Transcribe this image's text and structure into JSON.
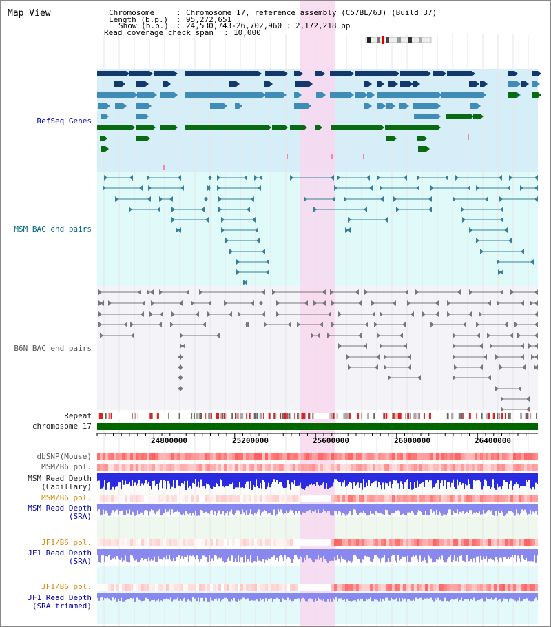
{
  "page_title": "Map View",
  "info": {
    "chromosome_key": "Chromosome",
    "chromosome_val": "Chromosome 17, reference assembly (C57BL/6J) (Build 37)",
    "length_key": "Length (b.p.)",
    "length_val": "95,272,651",
    "show_key": "Show (b.p.)",
    "show_val": "24,530,743-26,702,960 : 2,172,218 bp",
    "coverage_key": "Read coverage check span",
    "coverage_val": "10,000"
  },
  "tracks": {
    "refseq": "RefSeq Genes",
    "msm_bac": "MSM BAC end pairs",
    "b6n_bac": "B6N BAC end pairs",
    "repeat": "Repeat",
    "chromosome": "chromosome 17",
    "dbsnp": "dbSNP(Mouse)",
    "msm_b6_pol_1": "MSM/B6 pol.",
    "msm_depth_cap_1": "MSM Read Depth",
    "msm_depth_cap_2": "(Capillary)",
    "msm_b6_pol_2": "MSM/B6 pol.",
    "msm_depth_sra_1": "MSM Read Depth",
    "msm_depth_sra_2": "(SRA)",
    "jf1_b6_pol_1": "JF1/B6 pol.",
    "jf1_depth_sra_1": "JF1 Read Depth",
    "jf1_depth_sra_2": "(SRA)",
    "jf1_b6_pol_2": "JF1/B6 pol.",
    "jf1_depth_trim_1": "JF1 Read Depth",
    "jf1_depth_trim_2": "(SRA trimmed)"
  },
  "axis": {
    "ticks": [
      {
        "label": "24800000"
      },
      {
        "label": "25200000"
      },
      {
        "label": "25600000"
      },
      {
        "label": "26000000"
      },
      {
        "label": "26400000"
      }
    ]
  },
  "colors": {
    "refseq_bg": "#d6eef8",
    "msm_bg": "#dffaf9",
    "b6n_bg": "#f4f4f8",
    "highlight": "#f8d8f0",
    "refseq_dark": "#13386e",
    "refseq_mid": "#3f8cb6",
    "refseq_green": "#0a6a12",
    "msm_pair": "#3a7d96",
    "b6n_pair": "#777777",
    "chrom_bar": "#006600",
    "depth_blue": "#2a2ae0",
    "depth_light": "#8888ee"
  }
}
